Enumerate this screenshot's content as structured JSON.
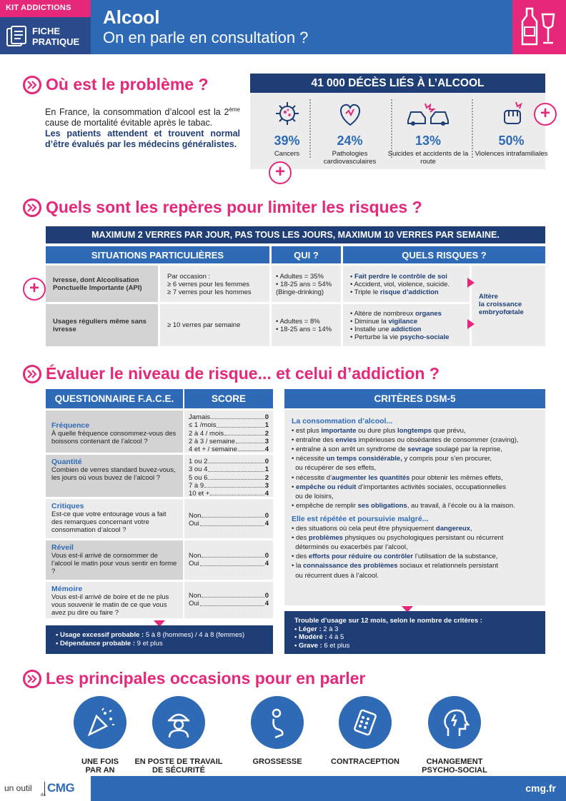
{
  "header": {
    "kit": "KIT ADDICTIONS",
    "fiche_line1": "FICHE",
    "fiche_line2": "PRATIQUE",
    "title": "Alcool",
    "subtitle": "On en parle en consultation ?"
  },
  "s1": {
    "heading": "Où est le problème ?",
    "intro_a": "En France, la consommation d’alcool est la 2",
    "intro_sup": "ème",
    "intro_b": " cause de mortalité évitable après le tabac.",
    "intro_bold": "Les patients attendent et trouvent normal d’être évalués par les médecins généralistes.",
    "deaths_title": "41 000 DÉCÈS LIÉS À L’ALCOOL",
    "stats": [
      {
        "pct": "39%",
        "label": "Cancers"
      },
      {
        "pct": "24%",
        "label": "Pathologies cardiovasculaires"
      },
      {
        "pct": "13%",
        "label": "Suicides et accidents de la route"
      },
      {
        "pct": "50%",
        "label": "Violences intrafamiliales"
      }
    ],
    "plus": "+"
  },
  "s2": {
    "heading": "Quels sont les repères pour limiter les risques ?",
    "banner": "MAXIMUM 2 VERRES PAR JOUR, PAS TOUS LES JOURS, MAXIMUM 10 VERRES PAR SEMAINE.",
    "col_situations": "SITUATIONS PARTICULIÈRES",
    "col_qui": "QUI ?",
    "col_risques": "QUELS RISQUES ?",
    "row1": {
      "situation": "Ivresse, dont Alcoolisation Ponctuelle Importante (API)",
      "occasion_1": "Par occasion :",
      "occasion_2": "≥ 6 verres pour les femmes",
      "occasion_3": "≥ 7 verres pour les hommes",
      "qui_1": "• Adultes = 35%",
      "qui_2": "• 18-25 ans = 54%",
      "qui_3": "(Binge-drinking)",
      "r1_b": "Fait perdre le contrôle de soi",
      "r2": "• Accident, viol, violence, suicide.",
      "r3_a": "• Triple le ",
      "r3_b": "risque d’addiction"
    },
    "row2": {
      "situation": "Usages réguliers même sans ivresse",
      "occasion": "≥ 10 verres par semaine",
      "qui_1": "• Adultes = 8%",
      "qui_2": "• 18-25 ans = 14%",
      "r1_a": "• Altère de nombreux ",
      "r1_b": "organes",
      "r2_a": "• Diminue la ",
      "r2_b": "vigilance",
      "r3_a": "• Installe une ",
      "r3_b": "addiction",
      "r4_a": "• Perturbe la vie ",
      "r4_b": "psycho-sociale"
    },
    "alter_1": "Altère",
    "alter_2": "la croissance",
    "alter_3": "embryofœtale"
  },
  "s3": {
    "heading": "Évaluer le niveau de risque... et celui d’addiction ?",
    "col_face": "QUESTIONNAIRE F.A.C.E.",
    "col_score": "SCORE",
    "col_dsm": "CRITÈRES DSM-5",
    "face": [
      {
        "title": "Fréquence",
        "q": "À quelle fréquence consommez-vous des boissons contenant de l’alcool ?",
        "opts": [
          [
            "Jamais",
            "0"
          ],
          [
            "≤ 1 /mois",
            "1"
          ],
          [
            "2 à 4 / mois",
            "2"
          ],
          [
            "2 à 3 / semaine",
            "3"
          ],
          [
            "4 et + / semaine",
            "4"
          ]
        ]
      },
      {
        "title": "Quantité",
        "q": "Combien de verres standard buvez-vous, les jours où vous buvez de l’alcool ?",
        "opts": [
          [
            "1 ou 2",
            "0"
          ],
          [
            "3 ou 4",
            "1"
          ],
          [
            "5 ou 6",
            "2"
          ],
          [
            "7 à 9",
            "3"
          ],
          [
            "10 et +",
            "4"
          ]
        ]
      },
      {
        "title": "Critiques",
        "q": "Est-ce que votre entourage vous a fait des remarques concernant votre consommation d’alcool ?",
        "opts": [
          [
            "Non",
            "0"
          ],
          [
            "Oui",
            "4"
          ]
        ]
      },
      {
        "title": "Réveil",
        "q": "Vous est-il arrivé de consommer de l’alcool le matin pour vous sentir en forme ?",
        "opts": [
          [
            "Non",
            "0"
          ],
          [
            "Oui",
            "4"
          ]
        ]
      },
      {
        "title": "Mémoire",
        "q": "Vous est-il arrivé de boire et de ne plus vous souvenir le matin de ce que vous avez pu dire ou faire ?",
        "opts": [
          [
            "Non",
            "0"
          ],
          [
            "Oui",
            "4"
          ]
        ]
      }
    ],
    "face_box_1a": "• Usage excessif probable : ",
    "face_box_1b": "5 à 8 (hommes) / 4 à 8 (femmes)",
    "face_box_2a": "• Dépendance probable : ",
    "face_box_2b": "9 et plus",
    "dsm_sub1": "La consommation d’alcool...",
    "dsm_sub2": "Elle est répétée et poursuivie malgré...",
    "dsm_box_title": "Trouble d’usage sur 12 mois, selon le nombre de critères :",
    "dsm_box_1a": "• Léger : ",
    "dsm_box_1b": "2 à 3",
    "dsm_box_2a": "• Modéré : ",
    "dsm_box_2b": "4 à 5",
    "dsm_box_3a": "• Grave : ",
    "dsm_box_3b": "6 et plus"
  },
  "s4": {
    "heading": "Les principales occasions pour en parler",
    "items": [
      {
        "l1": "UNE FOIS",
        "l2": "PAR AN"
      },
      {
        "l1": "EN POSTE DE TRAVAIL",
        "l2": "DE SÉCURITÉ"
      },
      {
        "l1": "GROSSESSE",
        "l2": ""
      },
      {
        "l1": "CONTRACEPTION",
        "l2": ""
      },
      {
        "l1": "CHANGEMENT",
        "l2": "PSYCHO-SOCIAL"
      }
    ]
  },
  "footer": {
    "outil": "un outil",
    "du": "du",
    "logo": "CMG",
    "url": "cmg.fr"
  },
  "colors": {
    "pink": "#e6287a",
    "blue": "#2f6ab7",
    "navy": "#1f3e76",
    "grey": "#ececec"
  }
}
